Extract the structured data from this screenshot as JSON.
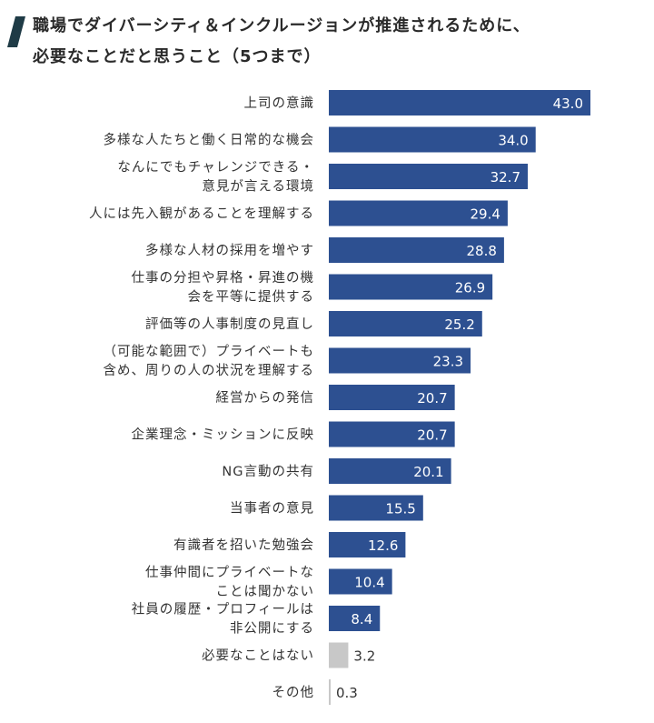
{
  "title": [
    "職場でダイバーシティ＆インクルージョンが推進されるために、",
    "必要なことだと思うこと（5つまで）"
  ],
  "colors": {
    "primary": "#2d5091",
    "muted": "#c8c8c8",
    "title_mark": "#1f3b46"
  },
  "chart_data": {
    "type": "bar",
    "orientation": "horizontal",
    "categories": [
      "上司の意識",
      "多様な人たちと働く日常的な機会",
      "なんにでもチャレンジできる・意見が言える環境",
      "人には先入観があることを理解する",
      "多様な人材の採用を増やす",
      "仕事の分担や昇格・昇進の機会を平等に提供する",
      "評価等の人事制度の見直し",
      "（可能な範囲で）プライベートも含め、周りの人の状況を理解する",
      "経営からの発信",
      "企業理念・ミッションに反映",
      "NG言動の共有",
      "当事者の意見",
      "有識者を招いた勉強会",
      "仕事仲間にプライベートなことは聞かない",
      "社員の履歴・プロフィールは非公開にする",
      "必要なことはない",
      "その他"
    ],
    "label_lines": [
      [
        "上司の意識"
      ],
      [
        "多様な人たちと働く日常的な機会"
      ],
      [
        "なんにでもチャレンジできる・",
        "意見が言える環境"
      ],
      [
        "人には先入観があることを理解する"
      ],
      [
        "多様な人材の採用を増やす"
      ],
      [
        "仕事の分担や昇格・昇進の機",
        "会を平等に提供する"
      ],
      [
        "評価等の人事制度の見直し"
      ],
      [
        "（可能な範囲で）プライベートも",
        "含め、周りの人の状況を理解する"
      ],
      [
        "経営からの発信"
      ],
      [
        "企業理念・ミッションに反映"
      ],
      [
        "NG言動の共有"
      ],
      [
        "当事者の意見"
      ],
      [
        "有識者を招いた勉強会"
      ],
      [
        "仕事仲間にプライベートな",
        "ことは聞かない"
      ],
      [
        "社員の履歴・プロフィールは",
        "非公開にする"
      ],
      [
        "必要なことはない"
      ],
      [
        "その他"
      ]
    ],
    "values": [
      43.0,
      34.0,
      32.7,
      29.4,
      28.8,
      26.9,
      25.2,
      23.3,
      20.7,
      20.7,
      20.1,
      15.5,
      12.6,
      10.4,
      8.4,
      3.2,
      0.3
    ],
    "value_labels": [
      "43.0",
      "34.0",
      "32.7",
      "29.4",
      "28.8",
      "26.9",
      "25.2",
      "23.3",
      "20.7",
      "20.7",
      "20.1",
      "15.5",
      "12.6",
      "10.4",
      "8.4",
      "3.2",
      "0.3"
    ],
    "highlight": [
      true,
      true,
      true,
      true,
      true,
      true,
      true,
      true,
      true,
      true,
      true,
      true,
      true,
      true,
      true,
      false,
      false
    ],
    "xlim": [
      0,
      43.0
    ],
    "grid": false,
    "legend": "none",
    "xlabel": "",
    "ylabel": ""
  }
}
